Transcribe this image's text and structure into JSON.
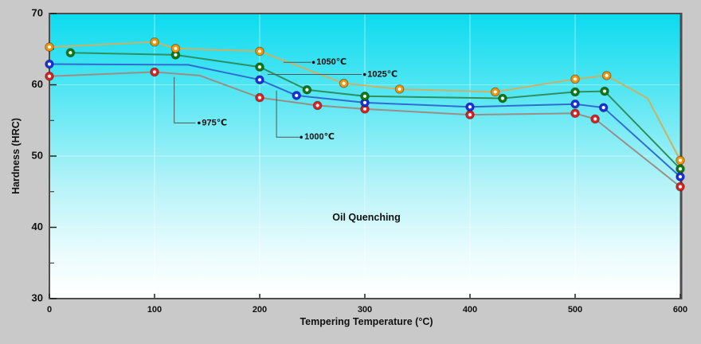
{
  "figure": {
    "outer_background": "#c9c9c9",
    "border_color": "#4d4d4d",
    "grid_color": "#ffffff",
    "leader_line_color": "#555555",
    "plot_gradient_stops": [
      [
        "0%",
        "#0bdbee"
      ],
      [
        "30%",
        "#5ce7f3"
      ],
      [
        "60%",
        "#b5f3f8"
      ],
      [
        "85%",
        "#ecfcfd"
      ],
      [
        "100%",
        "#ffffff"
      ]
    ]
  },
  "chart_data": {
    "type": "line",
    "title": "",
    "xlabel": "Tempering Temperature (°C)",
    "ylabel": "Hardness (HRC)",
    "center_label": "Oil Quenching",
    "xlim": [
      0,
      600
    ],
    "ylim": [
      30,
      70
    ],
    "x_ticks": [
      0,
      100,
      200,
      300,
      400,
      500,
      600
    ],
    "y_ticks": [
      30,
      40,
      50,
      60,
      70
    ],
    "y_minor_ticks": [
      35,
      45,
      55,
      65
    ],
    "grid_x": [
      100,
      200,
      300,
      400,
      500
    ],
    "grid_y": [
      40,
      50,
      60
    ],
    "grid_on": true,
    "legend_position": "inline leader-line annotations",
    "series": [
      {
        "name": "975℃",
        "quench_temperature_c": 975,
        "line_color": "#9a8e86",
        "marker_color": "#e01f1f",
        "points": [
          {
            "x": 0,
            "y": 61.2
          },
          {
            "x": 100,
            "y": 61.8
          },
          {
            "x": 143,
            "y": 61.3,
            "marker": false
          },
          {
            "x": 200,
            "y": 58.2
          },
          {
            "x": 255,
            "y": 57.1
          },
          {
            "x": 300,
            "y": 56.6
          },
          {
            "x": 400,
            "y": 55.8
          },
          {
            "x": 500,
            "y": 56.0
          },
          {
            "x": 519,
            "y": 55.2
          },
          {
            "x": 600,
            "y": 45.7
          }
        ]
      },
      {
        "name": "1000℃",
        "quench_temperature_c": 1000,
        "line_color": "#2f6ed0",
        "marker_color": "#1c2fe0",
        "points": [
          {
            "x": 0,
            "y": 62.9
          },
          {
            "x": 132,
            "y": 62.8,
            "marker": false
          },
          {
            "x": 200,
            "y": 60.7
          },
          {
            "x": 235,
            "y": 58.5
          },
          {
            "x": 300,
            "y": 57.5
          },
          {
            "x": 400,
            "y": 56.9
          },
          {
            "x": 500,
            "y": 57.3
          },
          {
            "x": 527,
            "y": 56.8
          },
          {
            "x": 600,
            "y": 47.1
          }
        ]
      },
      {
        "name": "1025℃",
        "quench_temperature_c": 1025,
        "line_color": "#2e9060",
        "marker_color": "#0e7a12",
        "points": [
          {
            "x": 20,
            "y": 64.5
          },
          {
            "x": 120,
            "y": 64.2
          },
          {
            "x": 200,
            "y": 62.5
          },
          {
            "x": 245,
            "y": 59.3
          },
          {
            "x": 300,
            "y": 58.4
          },
          {
            "x": 431,
            "y": 58.1
          },
          {
            "x": 500,
            "y": 59.0
          },
          {
            "x": 528,
            "y": 59.1
          },
          {
            "x": 600,
            "y": 48.2
          }
        ]
      },
      {
        "name": "1050℃",
        "quench_temperature_c": 1050,
        "line_color": "#c9b266",
        "marker_color": "#f59300",
        "points": [
          {
            "x": 0,
            "y": 65.3
          },
          {
            "x": 100,
            "y": 66.0
          },
          {
            "x": 120,
            "y": 65.1
          },
          {
            "x": 200,
            "y": 64.7
          },
          {
            "x": 280,
            "y": 60.2
          },
          {
            "x": 333,
            "y": 59.4
          },
          {
            "x": 424,
            "y": 59.0
          },
          {
            "x": 500,
            "y": 60.8
          },
          {
            "x": 530,
            "y": 61.3
          },
          {
            "x": 569,
            "y": 58.1,
            "marker": false
          },
          {
            "x": 600,
            "y": 49.4
          }
        ]
      }
    ],
    "annotations": [
      {
        "text": "975℃",
        "series": "975℃",
        "leader": [
          [
            118.7,
            61.1
          ],
          [
            118.7,
            54.65
          ],
          [
            139,
            54.65
          ]
        ],
        "bullet": [
          142.3,
          54.65
        ],
        "text_anchor": [
          145,
          54.65
        ]
      },
      {
        "text": "1000℃",
        "series": "1000℃",
        "leader": [
          [
            216,
            59.2
          ],
          [
            216,
            52.65
          ],
          [
            237.7,
            52.65
          ]
        ],
        "bullet": [
          239.5,
          52.65
        ],
        "text_anchor": [
          242.5,
          52.65
        ]
      },
      {
        "text": "1025℃",
        "series": "1025℃",
        "leader": [
          [
            207.4,
            61.45
          ],
          [
            297,
            61.45
          ]
        ],
        "bullet": [
          299.8,
          61.45
        ],
        "text_anchor": [
          302.5,
          61.45
        ]
      },
      {
        "text": "1050℃",
        "series": "1050℃",
        "leader": [
          [
            222.6,
            63.15
          ],
          [
            249,
            63.15
          ]
        ],
        "bullet": [
          251.2,
          63.15
        ],
        "text_anchor": [
          254,
          63.15
        ]
      }
    ]
  }
}
